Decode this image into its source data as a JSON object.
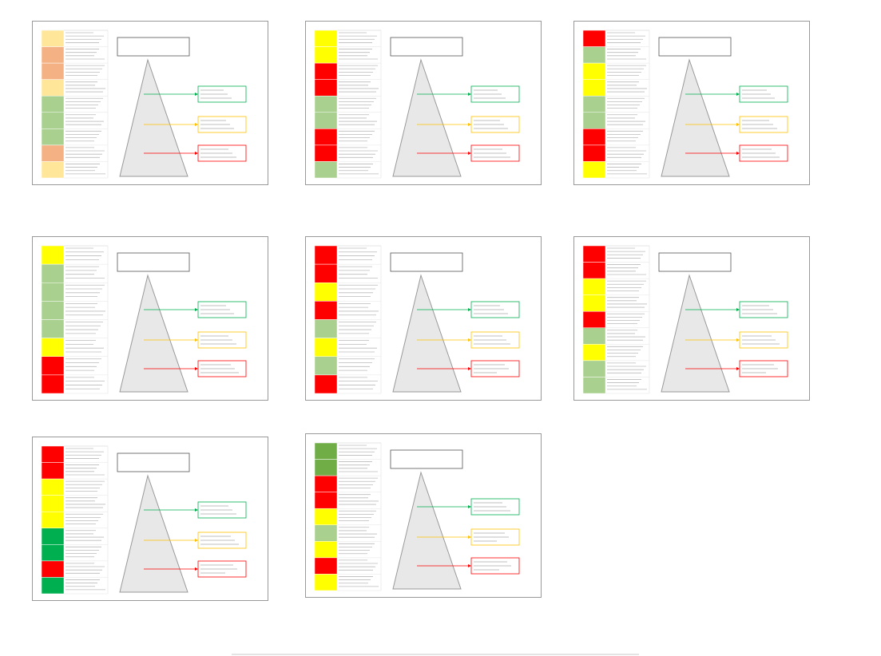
{
  "slides": [
    {
      "rows": [
        "#ffe699",
        "#f4b183",
        "#f4b183",
        "#ffe699",
        "#a9d08e",
        "#a9d08e",
        "#a9d08e",
        "#f4b183",
        "#ffe699"
      ]
    },
    {
      "rows": [
        "#ffff00",
        "#ffff00",
        "#ff0000",
        "#ff0000",
        "#a9d08e",
        "#a9d08e",
        "#ff0000",
        "#ff0000",
        "#a9d08e"
      ]
    },
    {
      "rows": [
        "#ff0000",
        "#a9d08e",
        "#ffff00",
        "#ffff00",
        "#a9d08e",
        "#a9d08e",
        "#ff0000",
        "#ff0000",
        "#ffff00"
      ]
    },
    {
      "rows": [
        "#ffff00",
        "#a9d08e",
        "#a9d08e",
        "#a9d08e",
        "#a9d08e",
        "#ffff00",
        "#ff0000",
        "#ff0000"
      ]
    },
    {
      "rows": [
        "#ff0000",
        "#ff0000",
        "#ffff00",
        "#ff0000",
        "#a9d08e",
        "#ffff00",
        "#a9d08e",
        "#ff0000"
      ]
    },
    {
      "rows": [
        "#ff0000",
        "#ff0000",
        "#ffff00",
        "#ffff00",
        "#ff0000",
        "#a9d08e",
        "#ffff00",
        "#a9d08e",
        "#a9d08e"
      ]
    },
    {
      "rows": [
        "#ff0000",
        "#ff0000",
        "#ffff00",
        "#ffff00",
        "#ffff00",
        "#00b050",
        "#00b050",
        "#ff0000",
        "#00b050"
      ]
    },
    {
      "rows": [
        "#70ad47",
        "#70ad47",
        "#ff0000",
        "#ff0000",
        "#ffff00",
        "#a9d08e",
        "#ffff00",
        "#ff0000",
        "#ffff00"
      ]
    }
  ]
}
